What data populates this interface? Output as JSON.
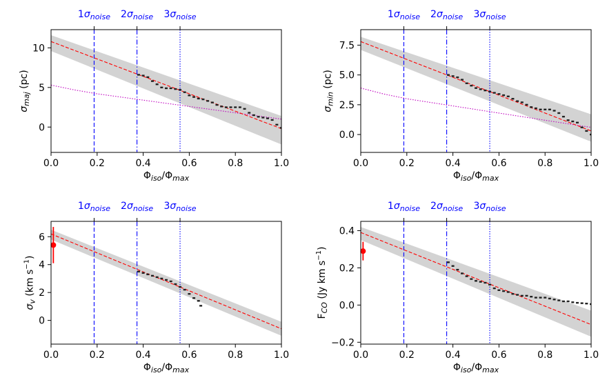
{
  "chart_data": [
    {
      "type": "scatter",
      "xlabel": "Φiso/Φmax",
      "xlabel_parts": {
        "a": "Φ",
        "sub_a": "iso",
        "mid": "/Φ",
        "sub_b": "max"
      },
      "ylabel_parts": {
        "main": "σ",
        "sub": "maj",
        "unit": " (pc)"
      },
      "xlim": [
        0,
        1
      ],
      "ylim": [
        -3.2,
        12.3
      ],
      "xticks": [
        0,
        0.2,
        0.4,
        0.6,
        0.8,
        1.0
      ],
      "xtick_labels": [
        "0.0",
        "0.2",
        "0.4",
        "0.6",
        "0.8",
        "1.0"
      ],
      "yticks": [
        0,
        5,
        10
      ],
      "ytick_labels": [
        "0",
        "5",
        "10"
      ],
      "noise_lines": {
        "x": [
          0.187,
          0.373,
          0.56
        ],
        "labels": [
          "1σnoise",
          "2σnoise",
          "3σnoise"
        ],
        "label_parts": [
          {
            "num": "1",
            "sym": "σ",
            "sub": "noise"
          },
          {
            "num": "2",
            "sym": "σ",
            "sub": "noise"
          },
          {
            "num": "3",
            "sym": "σ",
            "sub": "noise"
          }
        ],
        "styles": [
          "dashed",
          "dashdot",
          "dotted"
        ]
      },
      "fit_line": {
        "x": [
          0,
          1
        ],
        "y": [
          10.8,
          -0.2
        ]
      },
      "band": {
        "x": [
          0,
          1
        ],
        "upper": [
          11.6,
          1.4
        ],
        "lower": [
          9.6,
          -2.2
        ]
      },
      "extra_curve": {
        "x": [
          0,
          0.1,
          0.2,
          0.3,
          0.4,
          0.5,
          0.6,
          0.7,
          0.8,
          0.9,
          1.0
        ],
        "y": [
          5.3,
          4.7,
          4.2,
          3.8,
          3.4,
          3.0,
          2.6,
          2.2,
          1.8,
          1.4,
          1.0
        ]
      },
      "series": [
        {
          "x": [
            0.38,
            0.4,
            0.42,
            0.44,
            0.46,
            0.48,
            0.5,
            0.52,
            0.54,
            0.56,
            0.58,
            0.6,
            0.62,
            0.64,
            0.66,
            0.68,
            0.7,
            0.72,
            0.74,
            0.76,
            0.78,
            0.8,
            0.82,
            0.84,
            0.86,
            0.88,
            0.9,
            0.92,
            0.94,
            0.96,
            0.98,
            1.0
          ],
          "y": [
            6.6,
            6.5,
            6.3,
            5.8,
            5.4,
            5.0,
            4.9,
            4.9,
            4.8,
            4.7,
            4.4,
            4.0,
            3.8,
            3.6,
            3.5,
            3.3,
            3.1,
            2.8,
            2.6,
            2.5,
            2.5,
            2.5,
            2.5,
            2.3,
            1.8,
            1.5,
            1.3,
            1.2,
            1.1,
            0.9,
            0.3,
            -0.1
          ]
        }
      ],
      "point": null
    },
    {
      "type": "scatter",
      "xlabel": "Φiso/Φmax",
      "xlabel_parts": {
        "a": "Φ",
        "sub_a": "iso",
        "mid": "/Φ",
        "sub_b": "max"
      },
      "ylabel_parts": {
        "main": "σ",
        "sub": "min",
        "unit": " (pc)"
      },
      "xlim": [
        0,
        1
      ],
      "ylim": [
        -1.5,
        8.8
      ],
      "xticks": [
        0,
        0.2,
        0.4,
        0.6,
        0.8,
        1.0
      ],
      "xtick_labels": [
        "0.0",
        "0.2",
        "0.4",
        "0.6",
        "0.8",
        "1.0"
      ],
      "yticks": [
        0,
        2.5,
        5,
        7.5
      ],
      "ytick_labels": [
        "0.0",
        "2.5",
        "5.0",
        "7.5"
      ],
      "noise_lines": {
        "x": [
          0.187,
          0.373,
          0.56
        ],
        "labels": [
          "1σnoise",
          "2σnoise",
          "3σnoise"
        ],
        "label_parts": [
          {
            "num": "1",
            "sym": "σ",
            "sub": "noise"
          },
          {
            "num": "2",
            "sym": "σ",
            "sub": "noise"
          },
          {
            "num": "3",
            "sym": "σ",
            "sub": "noise"
          }
        ],
        "styles": [
          "dashed",
          "dashdot",
          "dotted"
        ]
      },
      "fit_line": {
        "x": [
          0,
          1
        ],
        "y": [
          7.8,
          0.3
        ]
      },
      "band": {
        "x": [
          0,
          1
        ],
        "upper": [
          8.2,
          1.7
        ],
        "lower": [
          7.1,
          -0.6
        ]
      },
      "extra_curve": {
        "x": [
          0,
          0.1,
          0.2,
          0.3,
          0.4,
          0.5,
          0.6,
          0.7,
          0.8,
          0.9,
          1.0
        ],
        "y": [
          3.9,
          3.4,
          3.0,
          2.7,
          2.4,
          2.1,
          1.8,
          1.5,
          1.2,
          0.9,
          0.6
        ]
      },
      "series": [
        {
          "x": [
            0.38,
            0.4,
            0.42,
            0.44,
            0.46,
            0.48,
            0.5,
            0.52,
            0.54,
            0.56,
            0.58,
            0.6,
            0.62,
            0.64,
            0.66,
            0.68,
            0.7,
            0.72,
            0.74,
            0.76,
            0.78,
            0.8,
            0.82,
            0.84,
            0.86,
            0.88,
            0.9,
            0.92,
            0.94,
            0.96,
            0.98,
            1.0
          ],
          "y": [
            5.0,
            4.9,
            4.8,
            4.6,
            4.3,
            4.1,
            3.9,
            3.8,
            3.7,
            3.6,
            3.5,
            3.4,
            3.3,
            3.2,
            3.0,
            2.8,
            2.7,
            2.5,
            2.3,
            2.2,
            2.1,
            2.1,
            2.1,
            2.0,
            1.8,
            1.5,
            1.2,
            1.1,
            1.0,
            0.6,
            0.3,
            0.0
          ]
        }
      ],
      "point": null
    },
    {
      "type": "scatter",
      "xlabel": "Φiso/Φmax",
      "xlabel_parts": {
        "a": "Φ",
        "sub_a": "iso",
        "mid": "/Φ",
        "sub_b": "max"
      },
      "ylabel_parts": {
        "main": "σ",
        "sub": "v",
        "unit": " (km s",
        "sup": "−1",
        "close": ")"
      },
      "xlim": [
        0,
        1
      ],
      "ylim": [
        -1.7,
        7.1
      ],
      "xticks": [
        0,
        0.2,
        0.4,
        0.6,
        0.8,
        1.0
      ],
      "xtick_labels": [
        "0.0",
        "0.2",
        "0.4",
        "0.6",
        "0.8",
        "1.0"
      ],
      "yticks": [
        0,
        2,
        4,
        6
      ],
      "ytick_labels": [
        "0",
        "2",
        "4",
        "6"
      ],
      "noise_lines": {
        "x": [
          0.187,
          0.373,
          0.56
        ],
        "labels": [
          "1σnoise",
          "2σnoise",
          "3σnoise"
        ],
        "label_parts": [
          {
            "num": "1",
            "sym": "σ",
            "sub": "noise"
          },
          {
            "num": "2",
            "sym": "σ",
            "sub": "noise"
          },
          {
            "num": "3",
            "sym": "σ",
            "sub": "noise"
          }
        ],
        "styles": [
          "dashed",
          "dashdot",
          "dotted"
        ]
      },
      "fit_line": {
        "x": [
          0,
          1
        ],
        "y": [
          6.2,
          -0.6
        ]
      },
      "band": {
        "x": [
          0,
          1
        ],
        "upper": [
          6.5,
          -0.1
        ],
        "lower": [
          5.8,
          -1.1
        ]
      },
      "extra_curve": null,
      "series": [
        {
          "x": [
            0.38,
            0.4,
            0.42,
            0.44,
            0.46,
            0.48,
            0.5,
            0.52,
            0.54,
            0.56,
            0.58,
            0.6,
            0.62,
            0.64,
            0.65
          ],
          "y": [
            3.5,
            3.4,
            3.3,
            3.2,
            3.1,
            3.0,
            2.9,
            2.8,
            2.6,
            2.4,
            2.2,
            1.9,
            1.6,
            1.4,
            1.05
          ]
        }
      ],
      "point": {
        "x": 0.01,
        "y": 5.4,
        "err": 1.3
      }
    },
    {
      "type": "scatter",
      "xlabel": "Φiso/Φmax",
      "xlabel_parts": {
        "a": "Φ",
        "sub_a": "iso",
        "mid": "/Φ",
        "sub_b": "max"
      },
      "ylabel_parts": {
        "main": "F",
        "sub": "CO",
        "unit": " (Jy km s",
        "sup": "−1",
        "close": ")"
      },
      "xlim": [
        0,
        1
      ],
      "ylim": [
        -0.21,
        0.45
      ],
      "xticks": [
        0,
        0.2,
        0.4,
        0.6,
        0.8,
        1.0
      ],
      "xtick_labels": [
        "0.0",
        "0.2",
        "0.4",
        "0.6",
        "0.8",
        "1.0"
      ],
      "yticks": [
        -0.2,
        0,
        0.2,
        0.4
      ],
      "ytick_labels": [
        "−0.2",
        "0.0",
        "0.2",
        "0.4"
      ],
      "noise_lines": {
        "x": [
          0.187,
          0.373,
          0.56
        ],
        "labels": [
          "1σnoise",
          "2σnoise",
          "3σnoise"
        ],
        "label_parts": [
          {
            "num": "1",
            "sym": "σ",
            "sub": "noise"
          },
          {
            "num": "2",
            "sym": "σ",
            "sub": "noise"
          },
          {
            "num": "3",
            "sym": "σ",
            "sub": "noise"
          }
        ],
        "styles": [
          "dashed",
          "dashdot",
          "dotted"
        ]
      },
      "fit_line": {
        "x": [
          0,
          1
        ],
        "y": [
          0.39,
          -0.105
        ]
      },
      "band": {
        "x": [
          0,
          1
        ],
        "upper": [
          0.42,
          -0.03
        ],
        "lower": [
          0.35,
          -0.17
        ]
      },
      "extra_curve": null,
      "series": [
        {
          "x": [
            0.38,
            0.4,
            0.42,
            0.44,
            0.46,
            0.48,
            0.5,
            0.52,
            0.54,
            0.56,
            0.58,
            0.6,
            0.62,
            0.64,
            0.66,
            0.68,
            0.7,
            0.72,
            0.74,
            0.76,
            0.78,
            0.8,
            0.82,
            0.84,
            0.86,
            0.88,
            0.9,
            0.92,
            0.94,
            0.96,
            0.98,
            1.0
          ],
          "y": [
            0.23,
            0.21,
            0.19,
            0.17,
            0.155,
            0.14,
            0.13,
            0.125,
            0.12,
            0.11,
            0.09,
            0.08,
            0.075,
            0.07,
            0.06,
            0.055,
            0.05,
            0.05,
            0.045,
            0.04,
            0.04,
            0.04,
            0.035,
            0.03,
            0.025,
            0.02,
            0.02,
            0.015,
            0.012,
            0.01,
            0.008,
            0.005
          ]
        }
      ],
      "point": {
        "x": 0.01,
        "y": 0.29,
        "err": 0.05
      }
    }
  ],
  "colors": {
    "noise_line": "#0000ff",
    "fit_line": "#ff0000",
    "band": "#d3d3d3",
    "extra_curve": "#bf00bf",
    "data_points": "#222222",
    "point": "#ff0000"
  }
}
